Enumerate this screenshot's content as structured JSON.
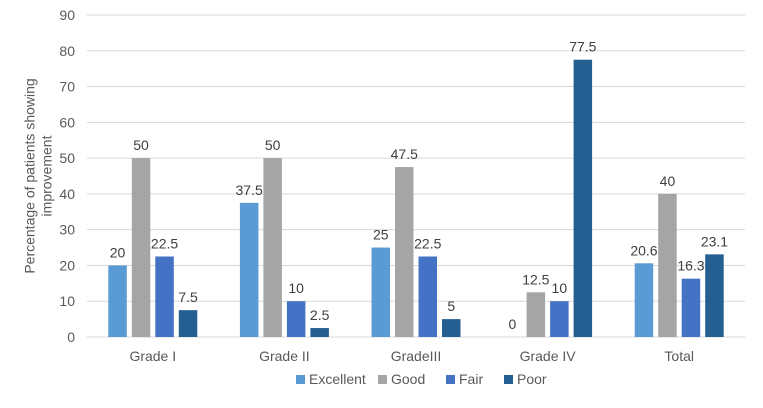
{
  "chart_data": {
    "type": "bar",
    "title": "",
    "xlabel": "",
    "ylabel_lines": [
      "Percentage of patients showing",
      "improvement"
    ],
    "ylim": [
      0,
      90
    ],
    "ytick_step": 10,
    "grid": true,
    "legend_position": "bottom",
    "categories": [
      "Grade I",
      "Grade II",
      "GradeIII",
      "Grade IV",
      "Total"
    ],
    "series": [
      {
        "name": "Excellent",
        "color": "#5B9BD5",
        "values": [
          20,
          37.5,
          25,
          0,
          20.6
        ]
      },
      {
        "name": "Good",
        "color": "#A5A5A5",
        "values": [
          50,
          50,
          47.5,
          12.5,
          40
        ]
      },
      {
        "name": "Fair",
        "color": "#4472C4",
        "values": [
          22.5,
          10,
          22.5,
          10,
          16.3
        ]
      },
      {
        "name": "Poor",
        "color": "#255E91",
        "values": [
          7.5,
          2.5,
          5,
          77.5,
          23.1
        ]
      }
    ]
  }
}
